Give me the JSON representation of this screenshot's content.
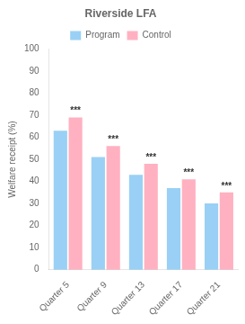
{
  "chart_data": {
    "type": "bar",
    "title": "Riverside LFA",
    "ylabel": "Welfare receipt (%)",
    "categories": [
      "Quarter 5",
      "Quarter 9",
      "Quarter 13",
      "Quarter 17",
      "Quarter 21"
    ],
    "series": [
      {
        "name": "Program",
        "values": [
          63,
          51,
          43,
          37,
          30
        ]
      },
      {
        "name": "Control",
        "values": [
          69,
          56,
          48,
          41,
          35
        ],
        "annotations": [
          "***",
          "***",
          "***",
          "***",
          "***"
        ]
      }
    ],
    "ylim": [
      0,
      100
    ],
    "yticks": [
      0,
      10,
      20,
      30,
      40,
      50,
      60,
      70,
      80,
      90,
      100
    ],
    "grid": false,
    "legend": "top"
  }
}
